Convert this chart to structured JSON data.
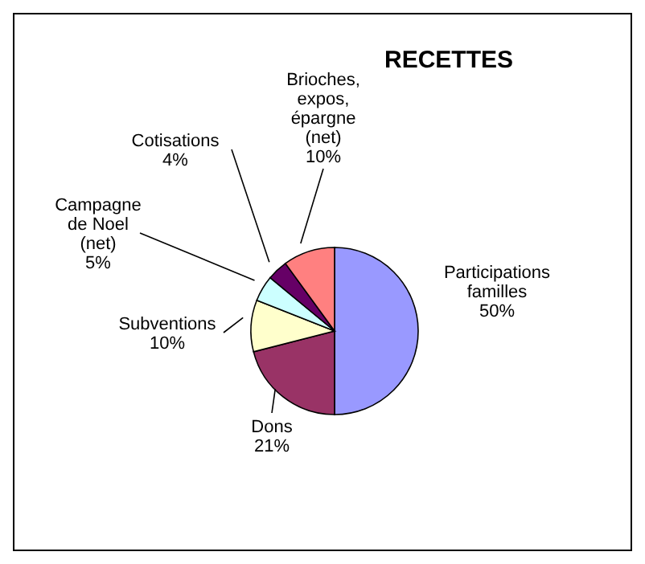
{
  "chart_data": {
    "type": "pie",
    "title": "RECETTES",
    "categories": [
      "Participations familles",
      "Dons",
      "Subventions",
      "Campagne de Noel (net)",
      "Cotisations",
      "Brioches, expos, épargne (net)"
    ],
    "values": [
      50,
      21,
      10,
      5,
      4,
      10
    ],
    "value_labels": [
      "50%",
      "21%",
      "10%",
      "5%",
      "4%",
      "10%"
    ],
    "colors": [
      "#9999ff",
      "#993366",
      "#ffffcc",
      "#ccffff",
      "#660066",
      "#ff8080"
    ]
  }
}
